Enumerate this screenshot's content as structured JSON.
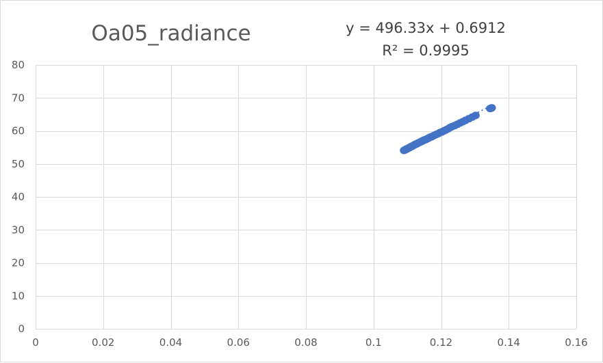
{
  "chart_data": {
    "type": "scatter",
    "title": "Oa05_radiance",
    "xlabel": "",
    "ylabel": "",
    "xlim": [
      0,
      0.16
    ],
    "ylim": [
      0,
      80
    ],
    "x_ticks": [
      0,
      0.02,
      0.04,
      0.06,
      0.08,
      0.1,
      0.12,
      0.14,
      0.16
    ],
    "x_tick_labels": [
      "0",
      "0.02",
      "0.04",
      "0.06",
      "0.08",
      "0.1",
      "0.12",
      "0.14",
      "0.16"
    ],
    "y_ticks": [
      0,
      10,
      20,
      30,
      40,
      50,
      60,
      70,
      80
    ],
    "y_tick_labels": [
      "0",
      "10",
      "20",
      "30",
      "40",
      "50",
      "60",
      "70",
      "80"
    ],
    "grid": true,
    "legend": "none",
    "marker_color": "#4472c4",
    "trendline": {
      "type": "linear",
      "slope": 496.33,
      "intercept": 0.6912,
      "x_range": [
        0.109,
        0.1352
      ],
      "equation_text": "y = 496.33x + 0.6912",
      "r2_text": "R² = 0.9995"
    },
    "series": [
      {
        "x": [
          0.109,
          0.1092,
          0.1095,
          0.1097,
          0.11,
          0.1102,
          0.1105,
          0.1108,
          0.111,
          0.1113,
          0.1115,
          0.1118,
          0.112,
          0.1123,
          0.1126,
          0.1128,
          0.1131,
          0.1134,
          0.1137,
          0.114,
          0.1143,
          0.1146,
          0.1149,
          0.1152,
          0.1155,
          0.1158,
          0.1161,
          0.1164,
          0.1168,
          0.1171,
          0.1175,
          0.1179,
          0.1183,
          0.1187,
          0.1192,
          0.1197,
          0.1202,
          0.1208,
          0.1214,
          0.122,
          0.1226,
          0.1232,
          0.124,
          0.1248,
          0.1256,
          0.1264,
          0.1272,
          0.1282,
          0.1292,
          0.1302,
          0.1345,
          0.1348,
          0.135
        ],
        "y": [
          54.1,
          54.2,
          54.3,
          54.5,
          54.6,
          54.7,
          54.9,
          55.0,
          55.2,
          55.3,
          55.4,
          55.6,
          55.7,
          55.9,
          56.0,
          56.1,
          56.3,
          56.4,
          56.6,
          56.7,
          56.9,
          57.0,
          57.2,
          57.3,
          57.4,
          57.6,
          57.7,
          57.9,
          58.1,
          58.2,
          58.4,
          58.6,
          58.8,
          59.0,
          59.2,
          59.5,
          59.7,
          60.0,
          60.3,
          60.6,
          61.0,
          61.3,
          61.6,
          62.0,
          62.4,
          62.8,
          63.2,
          63.7,
          64.2,
          64.7,
          66.8,
          66.9,
          67.0
        ]
      }
    ]
  }
}
